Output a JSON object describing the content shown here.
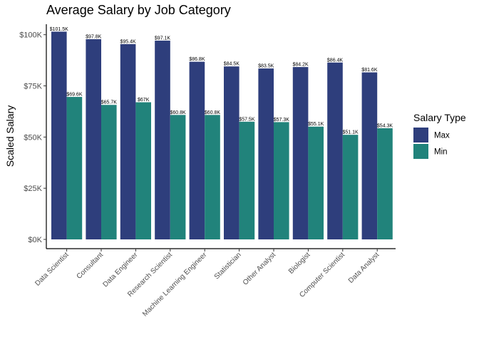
{
  "chart_data": {
    "type": "bar",
    "title": "Average Salary by Job Category",
    "xlabel": "",
    "ylabel": "Scaled Salary",
    "categories": [
      "Data Scientist",
      "Consultant",
      "Data Engineer",
      "Research Scientist",
      "Machine Learning Engineer",
      "Statistician",
      "Other Analyst",
      "Biologist",
      "Computer Scientist",
      "Data Analyst"
    ],
    "series": [
      {
        "name": "Max",
        "color": "#2e3e7c",
        "values": [
          101.5,
          97.8,
          95.4,
          97.1,
          86.8,
          84.5,
          83.5,
          84.2,
          86.4,
          81.6
        ],
        "labels": [
          "$101.5K",
          "$97.8K",
          "$95.4K",
          "$97.1K",
          "$86.8K",
          "$84.5K",
          "$83.5K",
          "$84.2K",
          "$86.4K",
          "$81.6K"
        ]
      },
      {
        "name": "Min",
        "color": "#21837b",
        "values": [
          69.6,
          65.7,
          67,
          60.8,
          60.8,
          57.5,
          57.3,
          55.1,
          51.1,
          54.3
        ],
        "labels": [
          "$69.6K",
          "$65.7K",
          "$67K",
          "$60.8K",
          "$60.8K",
          "$57.5K",
          "$57.3K",
          "$55.1K",
          "$51.1K",
          "$54.3K"
        ]
      }
    ],
    "ylim": [
      0,
      104
    ],
    "yticks": [
      0,
      25,
      50,
      75,
      100
    ],
    "ytick_labels": [
      "$0K",
      "$25K",
      "$50K",
      "$75K",
      "$100K"
    ],
    "grid": false,
    "legend": {
      "title": "Salary Type",
      "position": "right"
    }
  }
}
